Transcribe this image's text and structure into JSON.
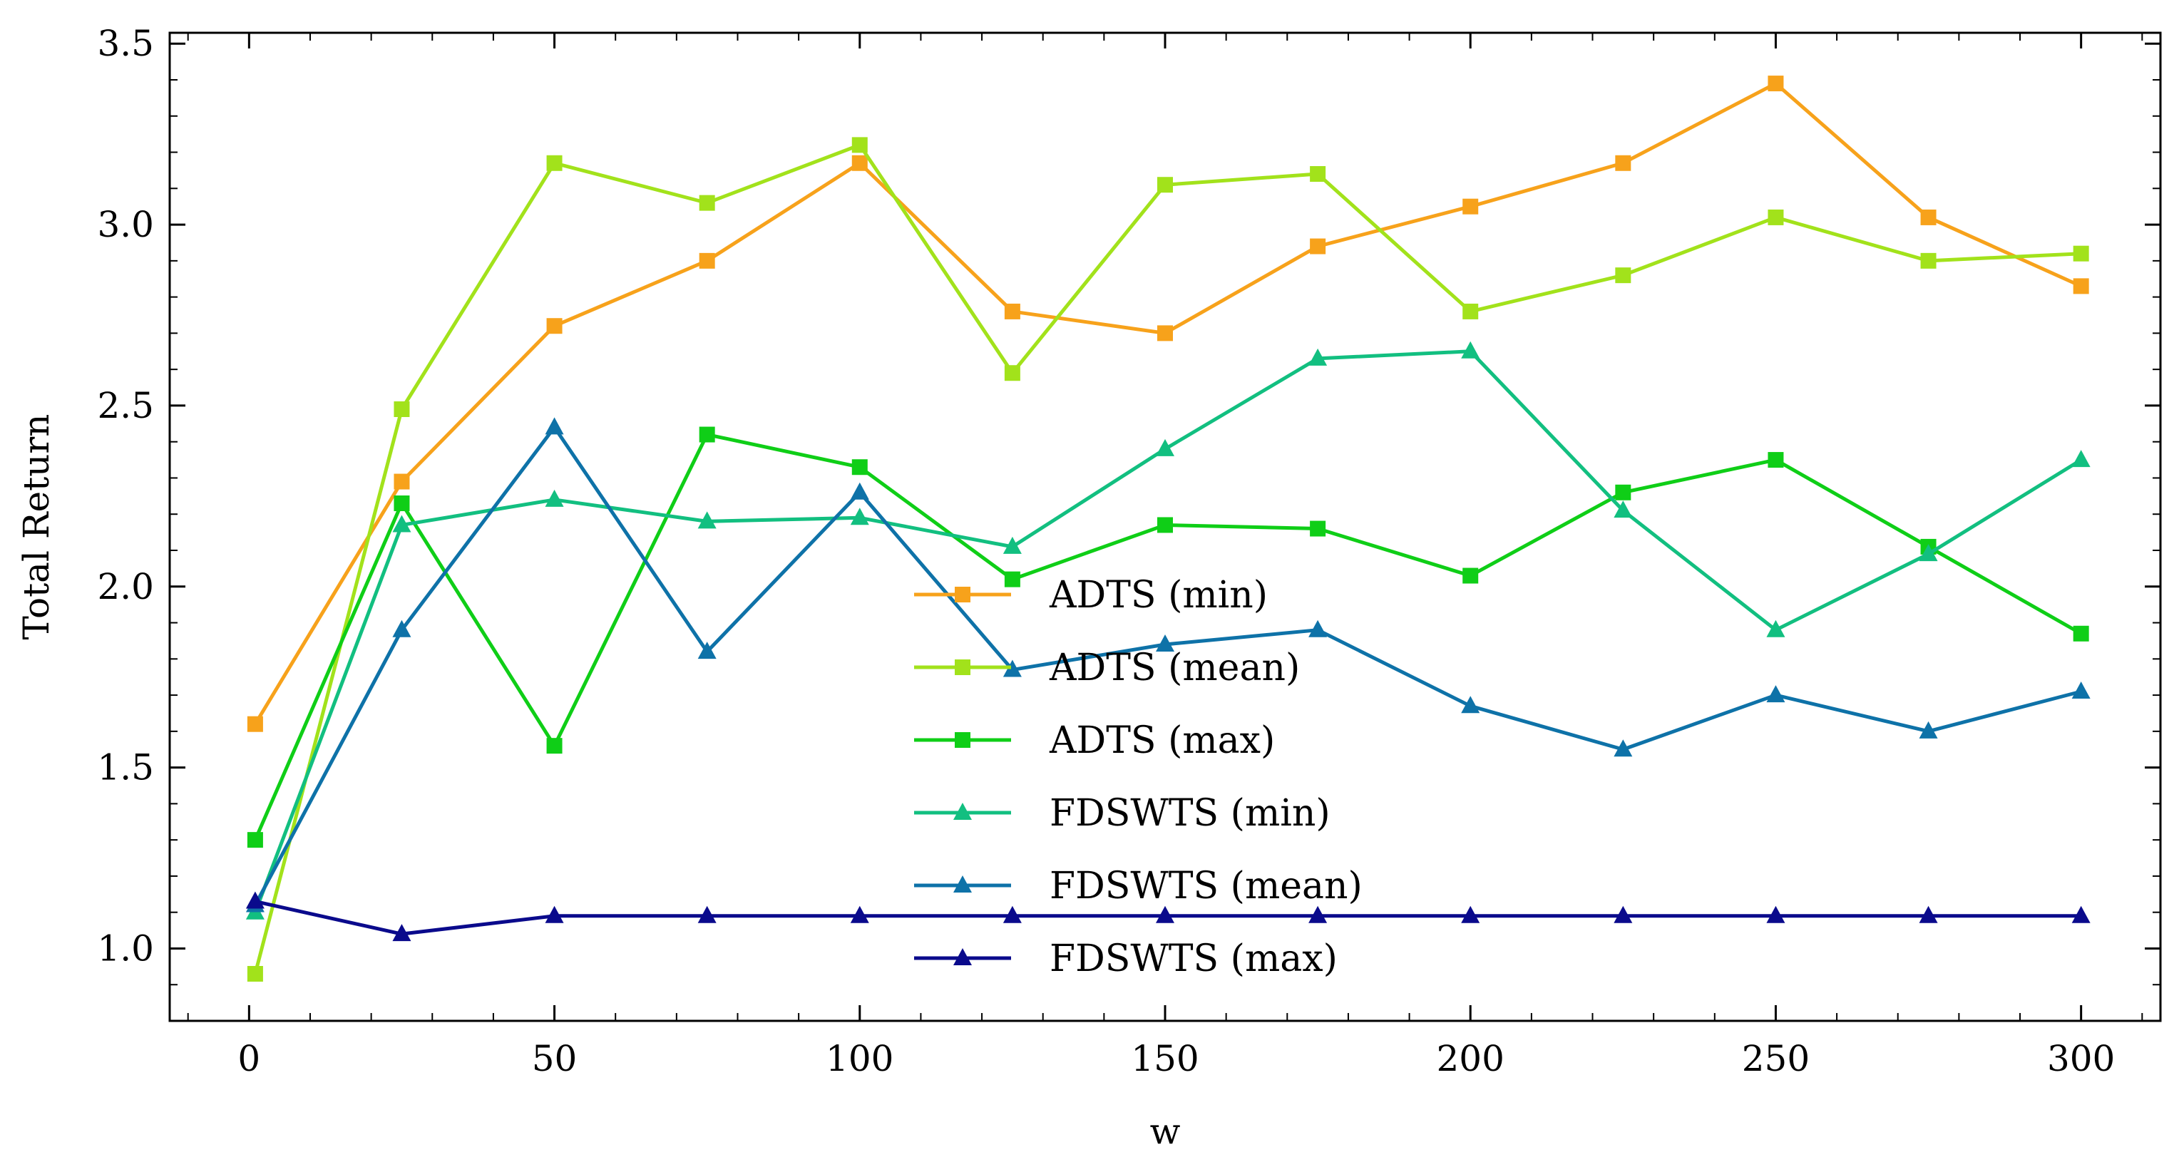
{
  "chart_data": {
    "type": "line",
    "title": "",
    "xlabel": "w",
    "ylabel": "Total Return",
    "xlim": [
      -13,
      313
    ],
    "ylim": [
      0.8,
      3.53
    ],
    "xticks": [
      0,
      50,
      100,
      150,
      200,
      250,
      300
    ],
    "xtick_labels": [
      "0",
      "50",
      "100",
      "150",
      "200",
      "250",
      "300"
    ],
    "yticks": [
      1.0,
      1.5,
      2.0,
      2.5,
      3.0,
      3.5
    ],
    "ytick_labels": [
      "1.0",
      "1.5",
      "2.0",
      "2.5",
      "3.0",
      "3.5"
    ],
    "grid": false,
    "legend_position": "lower center",
    "x": [
      1,
      25,
      50,
      75,
      100,
      125,
      150,
      175,
      200,
      225,
      250,
      275,
      300
    ],
    "series": [
      {
        "name": "ADTS (min)",
        "color": "#f7a21b",
        "marker": "square",
        "values": [
          1.62,
          2.29,
          2.72,
          2.9,
          3.17,
          2.76,
          2.7,
          2.94,
          3.05,
          3.17,
          3.39,
          3.02,
          2.83
        ]
      },
      {
        "name": "ADTS (mean)",
        "color": "#a2e21b",
        "marker": "square",
        "values": [
          0.93,
          2.49,
          3.17,
          3.06,
          3.22,
          2.59,
          3.11,
          3.14,
          2.76,
          2.86,
          3.02,
          2.9,
          2.92
        ]
      },
      {
        "name": "ADTS (max)",
        "color": "#0fce17",
        "marker": "square",
        "values": [
          1.3,
          2.23,
          1.56,
          2.42,
          2.33,
          2.02,
          2.17,
          2.16,
          2.03,
          2.26,
          2.35,
          2.11,
          1.87
        ]
      },
      {
        "name": "FDSWTS (min)",
        "color": "#12bf80",
        "marker": "triangle",
        "values": [
          1.1,
          2.17,
          2.24,
          2.18,
          2.19,
          2.11,
          2.38,
          2.63,
          2.65,
          2.21,
          1.88,
          2.09,
          2.35
        ]
      },
      {
        "name": "FDSWTS (mean)",
        "color": "#0e72a8",
        "marker": "triangle",
        "values": [
          1.12,
          1.88,
          2.44,
          1.82,
          2.26,
          1.77,
          1.84,
          1.88,
          1.67,
          1.55,
          1.7,
          1.6,
          1.71
        ]
      },
      {
        "name": "FDSWTS (max)",
        "color": "#0a0a8c",
        "marker": "triangle",
        "values": [
          1.13,
          1.04,
          1.09,
          1.09,
          1.09,
          1.09,
          1.09,
          1.09,
          1.09,
          1.09,
          1.09,
          1.09,
          1.09
        ]
      }
    ]
  }
}
